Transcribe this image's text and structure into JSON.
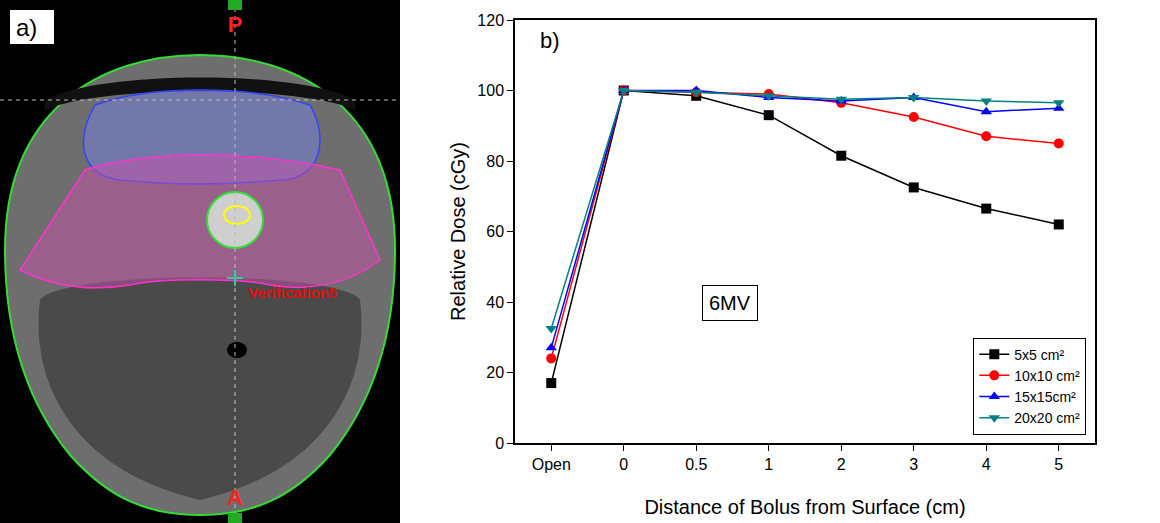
{
  "panel_a": {
    "label": "a)",
    "top_label": "P",
    "bottom_label": "A",
    "marker_label": "Verification5"
  },
  "chart_data": {
    "type": "line",
    "panel_label": "b)",
    "annotation": "6MV",
    "x_label": "Distance of Bolus from Surface (cm)",
    "y_label": "Relative Dose (cGy)",
    "categories": [
      "Open",
      "0",
      "0.5",
      "1",
      "2",
      "3",
      "4",
      "5"
    ],
    "series": [
      {
        "name": "5x5 cm²",
        "color": "#000000",
        "marker": "square",
        "values": [
          17,
          100,
          98.5,
          93,
          81.5,
          72.5,
          66.5,
          62
        ]
      },
      {
        "name": "10x10 cm²",
        "color": "#ff0000",
        "marker": "circle",
        "values": [
          24,
          100,
          99.5,
          99,
          96.5,
          92.5,
          87,
          85
        ]
      },
      {
        "name": "15x15cm²",
        "color": "#0000ff",
        "marker": "triangle-up",
        "values": [
          27,
          100,
          100,
          98,
          97,
          98,
          94,
          95
        ]
      },
      {
        "name": "20x20 cm²",
        "color": "#008080",
        "marker": "triangle-down",
        "values": [
          32.5,
          100,
          99.5,
          98.5,
          97.5,
          98,
          97,
          96.5
        ]
      }
    ],
    "ylim": [
      0,
      120
    ],
    "yticks": [
      0,
      20,
      40,
      60,
      80,
      100,
      120
    ],
    "grid": false,
    "legend": "lower right"
  }
}
